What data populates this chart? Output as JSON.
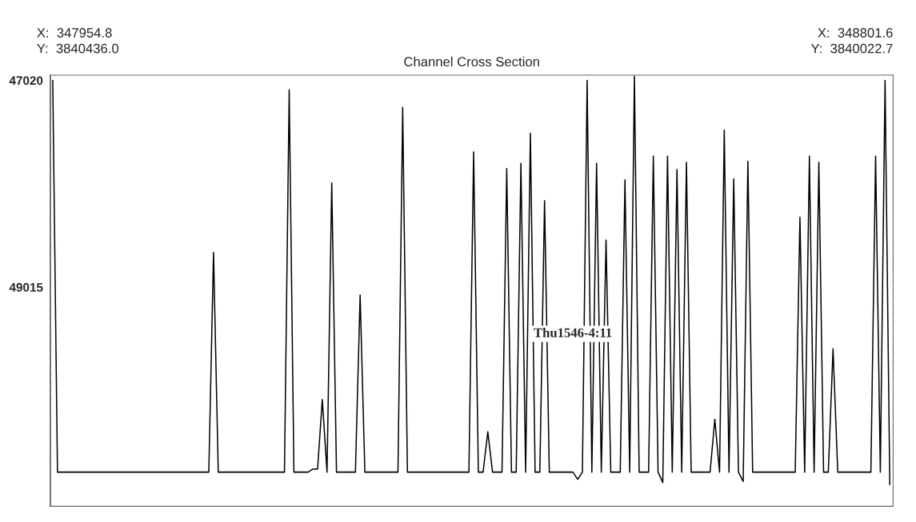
{
  "chart_data": {
    "type": "line",
    "title": "Channel Cross Section",
    "annotations": [
      "X:  347954.8",
      "Y:  3840436.0",
      "X:  348801.6",
      "Y:  3840022.7",
      "Thu1546-4:11"
    ],
    "color": "#000000",
    "ylim": [
      51130,
      46970
    ],
    "yticks": [
      47020,
      49015
    ],
    "tick_labels": "y",
    "categories": [
      null,
      null,
      null,
      null,
      null,
      null,
      null,
      null,
      null,
      null,
      null,
      null,
      null,
      null,
      null,
      null,
      null,
      null,
      null,
      null,
      null,
      null,
      null,
      null,
      null,
      null,
      null,
      null,
      null,
      null,
      null,
      null,
      null,
      null,
      null,
      null,
      null,
      null,
      null,
      null,
      null,
      null,
      null,
      null,
      null,
      null,
      null,
      null,
      null,
      null,
      null,
      null,
      null,
      null,
      null,
      null,
      null,
      null,
      null,
      null,
      null,
      null,
      null,
      null,
      null,
      null,
      null,
      null,
      null,
      null,
      null,
      null,
      null,
      null,
      null,
      null,
      null,
      null,
      null,
      null,
      null,
      null,
      null,
      null,
      null,
      null,
      null,
      null,
      null,
      null,
      null,
      null,
      null,
      null,
      null,
      null,
      null,
      null,
      null,
      null,
      null,
      null,
      null,
      null,
      null,
      null,
      null,
      null,
      null,
      null,
      null,
      null,
      null,
      null,
      null,
      null,
      null,
      null,
      null,
      null,
      null,
      null,
      null,
      null,
      null,
      null,
      null,
      null,
      null,
      null,
      null,
      null,
      null,
      null,
      null,
      null,
      null,
      null,
      null,
      null,
      null,
      null,
      null,
      null,
      null,
      null,
      null,
      null,
      null,
      null,
      null,
      null,
      null,
      null,
      null,
      null,
      null,
      null,
      null,
      null,
      null,
      null,
      null,
      null,
      null,
      null,
      null,
      null,
      null,
      null,
      null,
      null,
      null,
      null,
      null,
      null,
      null,
      null
    ],
    "values": [
      47020,
      50800,
      50800,
      50800,
      50800,
      50800,
      50800,
      50800,
      50800,
      50800,
      50800,
      50800,
      50800,
      50800,
      50800,
      50800,
      50800,
      50800,
      50800,
      50800,
      50800,
      50800,
      50800,
      50800,
      50800,
      50800,
      50800,
      50800,
      50800,
      50800,
      50800,
      50800,
      50800,
      50800,
      48680,
      50800,
      50800,
      50800,
      50800,
      50800,
      50800,
      50800,
      50800,
      50800,
      50800,
      50800,
      50800,
      50800,
      50800,
      50800,
      47110,
      50800,
      50800,
      50800,
      50800,
      50770,
      50770,
      50100,
      50800,
      48010,
      50800,
      50800,
      50800,
      50800,
      50800,
      49090,
      50800,
      50800,
      50800,
      50800,
      50800,
      50800,
      50800,
      50800,
      47280,
      50800,
      50800,
      50800,
      50800,
      50800,
      50800,
      50800,
      50800,
      50800,
      50800,
      50800,
      50800,
      50800,
      50800,
      47710,
      50800,
      50800,
      50410,
      50800,
      50800,
      50800,
      47870,
      50800,
      50800,
      47820,
      50800,
      47530,
      50800,
      50800,
      48180,
      50800,
      50800,
      50800,
      50800,
      50800,
      50800,
      50870,
      50800,
      47020,
      50800,
      47820,
      50800,
      48560,
      50800,
      50800,
      50800,
      47980,
      50800,
      46980,
      50800,
      50800,
      50800,
      47750,
      50800,
      50900,
      47750,
      50800,
      47880,
      50800,
      47810,
      50800,
      50800,
      50800,
      50800,
      50800,
      50290,
      50800,
      47500,
      50800,
      47970,
      50800,
      50890,
      47800,
      50800,
      50800,
      50800,
      50800,
      50800,
      50800,
      50800,
      50800,
      50800,
      50800,
      48340,
      50800,
      47750,
      50800,
      47810,
      50800,
      50800,
      49610,
      50800,
      50800,
      50800,
      50800,
      50800,
      50800,
      50800,
      50800,
      47750,
      50800,
      47020,
      50920
    ]
  }
}
